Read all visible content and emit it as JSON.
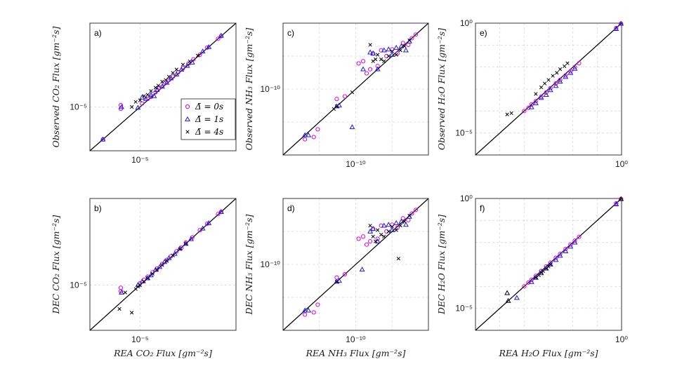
{
  "colors": {
    "series_0s": "#e000e0",
    "series_1s": "#1a1ad9",
    "series_4s": "#000000",
    "frame": "#222222",
    "grid": "#d9d9d9"
  },
  "legend": {
    "entries": [
      {
        "marker": "circle",
        "color": "#e000e0",
        "label": "Δ̄ = 0s"
      },
      {
        "marker": "triangle",
        "color": "#1a1ad9",
        "label": "Δ̄ = 1s"
      },
      {
        "marker": "cross",
        "color": "#000000",
        "label": "Δ̄ = 4s"
      }
    ]
  },
  "chart_data": [
    {
      "id": "a",
      "panel_label": "a)",
      "type": "scatter",
      "scale": "log",
      "xlabel": "",
      "ylabel": "Observed CO₂ Flux [gm⁻²s]",
      "x_tick_label": "10⁻⁵",
      "y_tick_label": "10⁻⁵",
      "xlim": [
        3e-06,
        0.0001
      ],
      "ylim": [
        3e-06,
        0.0001
      ],
      "ticks": [
        1e-05
      ],
      "has_legend": true,
      "series": [
        {
          "name": "Δ̄ = 0s",
          "marker": "circle",
          "color": "#e000e0",
          "x": [
            4.1e-06,
            6.3e-06,
            6.3e-06,
            1.05e-05,
            1.2e-05,
            1.3e-05,
            1.45e-05,
            1.6e-05,
            1.8e-05,
            2e-05,
            2.2e-05,
            2.5e-05,
            2.8e-05,
            3.2e-05,
            3.6e-05,
            4.2e-05,
            5e-05,
            6.5e-05,
            7e-05
          ],
          "y": [
            4.1e-06,
            1.05e-05,
            9.5e-06,
            1.1e-05,
            1.25e-05,
            1.32e-05,
            1.5e-05,
            1.7e-05,
            1.9e-05,
            2.1e-05,
            2.3e-05,
            2.6e-05,
            2.9e-05,
            3.3e-05,
            3.7e-05,
            4.2e-05,
            5.1e-05,
            6.5e-05,
            7e-05
          ]
        },
        {
          "name": "Δ̄ = 1s",
          "marker": "triangle",
          "color": "#1a1ad9",
          "x": [
            4.1e-06,
            6.4e-06,
            9.5e-06,
            1.05e-05,
            1.15e-05,
            1.3e-05,
            1.4e-05,
            1.5e-05,
            1.7e-05,
            1.9e-05,
            2.1e-05,
            2.4e-05,
            2.7e-05,
            3.1e-05,
            3.5e-05,
            4.5e-05,
            5.2e-05,
            7e-05
          ],
          "y": [
            4.1e-06,
            1e-05,
            9.8e-06,
            1.3e-05,
            1.25e-05,
            1.4e-05,
            1.35e-05,
            1.6e-05,
            1.75e-05,
            1.95e-05,
            2.2e-05,
            2.45e-05,
            2.8e-05,
            3.1e-05,
            3.4e-05,
            4.6e-05,
            5.2e-05,
            7.1e-05
          ]
        },
        {
          "name": "Δ̄ = 4s",
          "marker": "cross",
          "color": "#000000",
          "x": [
            8.2e-06,
            9e-06,
            1e-05,
            1.1e-05,
            1.2e-05,
            1.3e-05,
            1.45e-05,
            1.55e-05,
            1.7e-05,
            1.85e-05,
            2e-05,
            2.2e-05,
            2.4e-05,
            2.8e-05,
            3.3e-05,
            4e-05
          ],
          "y": [
            1e-05,
            1.15e-05,
            1.2e-05,
            1.35e-05,
            1.4e-05,
            1.55e-05,
            1.7e-05,
            1.8e-05,
            2e-05,
            2.1e-05,
            2.3e-05,
            2.55e-05,
            2.8e-05,
            3.2e-05,
            3.5e-05,
            4.1e-05
          ]
        }
      ]
    },
    {
      "id": "b",
      "panel_label": "b)",
      "type": "scatter",
      "scale": "log",
      "xlabel": "REA CO₂ Flux [gm⁻²s]",
      "ylabel": "DEC CO₂ Flux [gm⁻²s]",
      "x_tick_label": "10⁻⁵",
      "y_tick_label": "10⁻⁵",
      "xlim": [
        3e-06,
        0.0001
      ],
      "ylim": [
        3e-06,
        0.0001
      ],
      "ticks": [
        1e-05
      ],
      "has_legend": false,
      "series": [
        {
          "name": "Δ̄ = 0s",
          "marker": "circle",
          "color": "#e000e0",
          "x": [
            6.3e-06,
            6.3e-06,
            1e-05,
            1.1e-05,
            1.2e-05,
            1.35e-05,
            1.5e-05,
            1.7e-05,
            1.9e-05,
            2.1e-05,
            2.4e-05,
            2.7e-05,
            3e-05,
            3.5e-05,
            4.2e-05,
            5e-05,
            6.5e-05,
            7e-05
          ],
          "y": [
            8.5e-06,
            9.3e-06,
            1.05e-05,
            1.15e-05,
            1.25e-05,
            1.4e-05,
            1.55e-05,
            1.75e-05,
            1.95e-05,
            2.15e-05,
            2.45e-05,
            2.7e-05,
            3.1e-05,
            3.55e-05,
            4.3e-05,
            5.1e-05,
            6.6e-05,
            7e-05
          ]
        },
        {
          "name": "Δ̄ = 1s",
          "marker": "triangle",
          "color": "#1a1ad9",
          "x": [
            6.4e-06,
            9.5e-06,
            1.05e-05,
            1.2e-05,
            1.3e-05,
            1.45e-05,
            1.6e-05,
            1.8e-05,
            2e-05,
            2.3e-05,
            2.6e-05,
            3e-05,
            3.4e-05,
            4.5e-05,
            5.2e-05,
            7e-05
          ],
          "y": [
            8.2e-06,
            1e-05,
            1.1e-05,
            1.2e-05,
            1.3e-05,
            1.5e-05,
            1.62e-05,
            1.85e-05,
            2.05e-05,
            2.3e-05,
            2.65e-05,
            3e-05,
            3.4e-05,
            4.5e-05,
            5.2e-05,
            7e-05
          ]
        },
        {
          "name": "Δ̄ = 4s",
          "marker": "cross",
          "color": "#000000",
          "x": [
            6.1e-06,
            7e-06,
            8.2e-06,
            9e-06,
            9.5e-06,
            1e-05,
            1.1e-05,
            1.2e-05,
            1.35e-05,
            1.5e-05,
            1.7e-05,
            1.9e-05,
            2.2e-05,
            2.6e-05,
            3e-05
          ],
          "y": [
            5.3e-06,
            8.2e-06,
            4.8e-06,
            9e-06,
            9.6e-06,
            1e-05,
            1.1e-05,
            1.2e-05,
            1.35e-05,
            1.5e-05,
            1.7e-05,
            1.9e-05,
            2.2e-05,
            2.6e-05,
            3e-05
          ]
        }
      ]
    },
    {
      "id": "c",
      "panel_label": "c)",
      "type": "scatter",
      "scale": "log",
      "xlabel": "",
      "ylabel": "Observed NH₃ Flux [gm⁻²s]",
      "x_tick_label": "10⁻¹⁰",
      "y_tick_label": "10⁻¹⁰",
      "xlim": [
        1e-12,
        1e-08
      ],
      "ylim": [
        1e-12,
        1e-08
      ],
      "ticks": [
        1e-10
      ],
      "has_legend": false,
      "series": [
        {
          "name": "Δ̄ = 0s",
          "marker": "circle",
          "color": "#e000e0",
          "x": [
            4e-12,
            7e-12,
            9e-12,
            3e-11,
            5e-11,
            1.2e-10,
            1.6e-10,
            2e-10,
            2.5e-10,
            3e-10,
            4e-10,
            5e-10,
            7e-10,
            1e-09,
            1.4e-09,
            2e-09,
            2.8e-09,
            3.5e-09,
            4.5e-09
          ],
          "y": [
            3e-12,
            3.5e-12,
            6e-12,
            5e-11,
            6e-11,
            6e-10,
            7e-10,
            3e-10,
            4e-10,
            1.2e-09,
            5e-10,
            1.5e-09,
            1e-09,
            1.6e-09,
            1.2e-09,
            2.5e-09,
            2.2e-09,
            3.5e-09,
            4.5e-09
          ]
        },
        {
          "name": "Δ̄ = 1s",
          "marker": "triangle",
          "color": "#1a1ad9",
          "x": [
            4e-12,
            5e-12,
            3e-11,
            3.5e-11,
            8e-11,
            1.6e-10,
            2.5e-10,
            3e-10,
            4e-10,
            6e-10,
            8e-10,
            1e-09,
            1.3e-09,
            1.8e-09,
            2.4e-09,
            3e-09
          ],
          "y": [
            4e-12,
            4e-12,
            3e-11,
            3.2e-11,
            7e-12,
            4e-10,
            1.3e-09,
            1.2e-09,
            4e-10,
            1.5e-09,
            1.6e-09,
            1.1e-09,
            1.8e-09,
            2e-09,
            1.5e-09,
            2.8e-09
          ]
        },
        {
          "name": "Δ̄ = 4s",
          "marker": "cross",
          "color": "#000000",
          "x": [
            2.5e-11,
            3e-11,
            8e-11,
            2.5e-10,
            3e-10,
            3.5e-10,
            4e-10,
            5e-10,
            6e-10,
            8e-10,
            1e-09,
            1.3e-09,
            1.7e-09,
            2.2e-09,
            3e-09
          ],
          "y": [
            2.5e-11,
            3e-11,
            8e-11,
            2.2e-09,
            7e-10,
            8e-10,
            1.1e-09,
            8e-10,
            7e-10,
            1e-09,
            1.4e-09,
            1.1e-09,
            1.5e-09,
            2e-09,
            3e-09
          ]
        }
      ]
    },
    {
      "id": "d",
      "panel_label": "d)",
      "type": "scatter",
      "scale": "log",
      "xlabel": "REA NH₃ Flux [gm⁻²s]",
      "ylabel": "DEC NH₃ Flux [gm⁻²s]",
      "x_tick_label": "10⁻¹⁰",
      "y_tick_label": "10⁻¹⁰",
      "xlim": [
        1e-12,
        1e-08
      ],
      "ylim": [
        1e-12,
        1e-08
      ],
      "ticks": [
        1e-10
      ],
      "has_legend": false,
      "series": [
        {
          "name": "Δ̄ = 0s",
          "marker": "circle",
          "color": "#e000e0",
          "x": [
            4e-12,
            7e-12,
            9e-12,
            3e-11,
            5e-11,
            1.2e-10,
            1.6e-10,
            2e-10,
            2.5e-10,
            3e-10,
            4e-10,
            5e-10,
            7e-10,
            1e-09,
            1.4e-09,
            2e-09,
            2.8e-09,
            3.5e-09,
            4.5e-09
          ],
          "y": [
            3e-12,
            3.5e-12,
            6e-12,
            4e-11,
            5e-11,
            6e-10,
            7e-10,
            4e-10,
            5e-10,
            1.2e-09,
            6e-10,
            1.5e-09,
            1e-09,
            1.6e-09,
            1.3e-09,
            2.5e-09,
            2.2e-09,
            3.5e-09,
            4.5e-09
          ]
        },
        {
          "name": "Δ̄ = 1s",
          "marker": "triangle",
          "color": "#1a1ad9",
          "x": [
            4e-12,
            5e-12,
            3e-11,
            3.5e-11,
            1.5e-10,
            2.5e-10,
            3e-10,
            4e-10,
            6e-10,
            8e-10,
            1e-09,
            1.3e-09,
            1.8e-09,
            2.4e-09,
            3e-09
          ],
          "y": [
            4e-12,
            4e-12,
            3e-11,
            3.2e-11,
            7e-11,
            1e-09,
            1.2e-09,
            5e-10,
            1.5e-09,
            1.6e-09,
            1.1e-09,
            1.8e-09,
            2e-09,
            1.6e-09,
            2.8e-09
          ]
        },
        {
          "name": "Δ̄ = 4s",
          "marker": "cross",
          "color": "#000000",
          "x": [
            3e-11,
            2.5e-10,
            3e-10,
            3.5e-10,
            4e-10,
            5e-10,
            6e-10,
            8e-10,
            1e-09,
            1.3e-09,
            1.7e-09,
            2.2e-09,
            3e-09,
            1.5e-09
          ],
          "y": [
            3e-11,
            1.5e-09,
            7e-10,
            5e-10,
            1.1e-09,
            8e-10,
            7e-10,
            1e-09,
            1.4e-09,
            1.1e-09,
            1.5e-09,
            2e-09,
            3e-09,
            1.5e-10
          ]
        }
      ]
    },
    {
      "id": "e",
      "panel_label": "e)",
      "type": "scatter",
      "scale": "log",
      "xlabel": "",
      "ylabel": "Observed H₂O Flux [gm⁻²s]",
      "x_tick_label": "10⁰",
      "y_tick_label_top": "10⁰",
      "y_tick_label_bottom": "10⁻⁵",
      "xlim": [
        1e-06,
        1.0
      ],
      "ylim": [
        1e-06,
        1.0
      ],
      "ticks": [
        1e-05,
        1.0
      ],
      "has_legend": false,
      "series": [
        {
          "name": "Δ̄ = 0s",
          "marker": "circle",
          "color": "#e000e0",
          "x": [
            0.0001,
            0.00015,
            0.0002,
            0.0003,
            0.0005,
            0.0008,
            0.0012,
            0.002,
            0.003,
            0.005,
            0.008,
            0.012,
            0.018,
            0.6,
            0.95
          ],
          "y": [
            0.0001,
            0.00014,
            0.0002,
            0.00028,
            0.00045,
            0.0007,
            0.0011,
            0.0018,
            0.0026,
            0.0042,
            0.0065,
            0.01,
            0.015,
            0.6,
            0.95
          ]
        },
        {
          "name": "Δ̄ = 1s",
          "marker": "triangle",
          "color": "#1a1ad9",
          "x": [
            0.0002,
            0.0003,
            0.0005,
            0.0008,
            0.0012,
            0.002,
            0.003,
            0.005,
            0.008,
            0.012,
            0.6,
            0.95
          ],
          "y": [
            0.00015,
            0.00023,
            0.0004,
            0.00055,
            0.0009,
            0.0014,
            0.0022,
            0.0036,
            0.0055,
            0.0085,
            0.55,
            0.95
          ]
        },
        {
          "name": "Δ̄ = 4s",
          "marker": "cross",
          "color": "#000000",
          "x": [
            2e-05,
            3e-05,
            0.0003,
            0.0005,
            0.0007,
            0.001,
            0.0015,
            0.0022,
            0.003,
            0.0045,
            0.006
          ],
          "y": [
            7e-05,
            8e-05,
            0.0006,
            0.0012,
            0.0018,
            0.0026,
            0.004,
            0.0055,
            0.008,
            0.011,
            0.015
          ]
        }
      ]
    },
    {
      "id": "f",
      "panel_label": "f)",
      "type": "scatter",
      "scale": "log",
      "xlabel": "REA H₂O Flux [gm⁻²s]",
      "ylabel": "DEC H₂O Flux [gm⁻²s]",
      "x_tick_label": "10⁰",
      "y_tick_label_top": "10⁰",
      "y_tick_label_bottom": "10⁻⁵",
      "xlim": [
        1e-06,
        1.0
      ],
      "ylim": [
        1e-06,
        1.0
      ],
      "ticks": [
        1e-05,
        1.0
      ],
      "has_legend": false,
      "series": [
        {
          "name": "Δ̄ = 0s",
          "marker": "circle",
          "color": "#e000e0",
          "x": [
            0.0001,
            0.00015,
            0.0002,
            0.0003,
            0.0005,
            0.0008,
            0.0012,
            0.002,
            0.003,
            0.005,
            0.008,
            0.012,
            0.018,
            0.6,
            0.95
          ],
          "y": [
            0.0001,
            0.00015,
            0.0002,
            0.0003,
            0.0005,
            0.0008,
            0.0012,
            0.002,
            0.003,
            0.005,
            0.008,
            0.012,
            0.018,
            0.6,
            0.95
          ]
        },
        {
          "name": "Δ̄ = 1s",
          "marker": "triangle",
          "color": "#1a1ad9",
          "x": [
            5e-05,
            0.0002,
            0.0003,
            0.0005,
            0.0008,
            0.0012,
            0.002,
            0.003,
            0.005,
            0.008,
            0.012,
            0.6
          ],
          "y": [
            3e-05,
            0.00016,
            0.00025,
            0.0004,
            0.00065,
            0.001,
            0.0016,
            0.0025,
            0.004,
            0.0065,
            0.01,
            0.55
          ]
        },
        {
          "name": "Δ̄ = 4s",
          "marker": "cross",
          "color": "#000000",
          "x": [
            0.0003,
            0.0004,
            0.0005,
            0.0006,
            0.0008,
            0.001,
            0.0012
          ],
          "y": [
            0.00025,
            0.00032,
            0.00042,
            0.0005,
            0.00065,
            0.0008,
            0.001
          ]
        },
        {
          "name": "Δ̄ = 4s (triangle)",
          "marker": "triangle",
          "color": "#000000",
          "x": [
            2e-05,
            2.2e-05,
            0.95
          ],
          "y": [
            5e-05,
            2.2e-05,
            0.95
          ]
        }
      ]
    }
  ]
}
